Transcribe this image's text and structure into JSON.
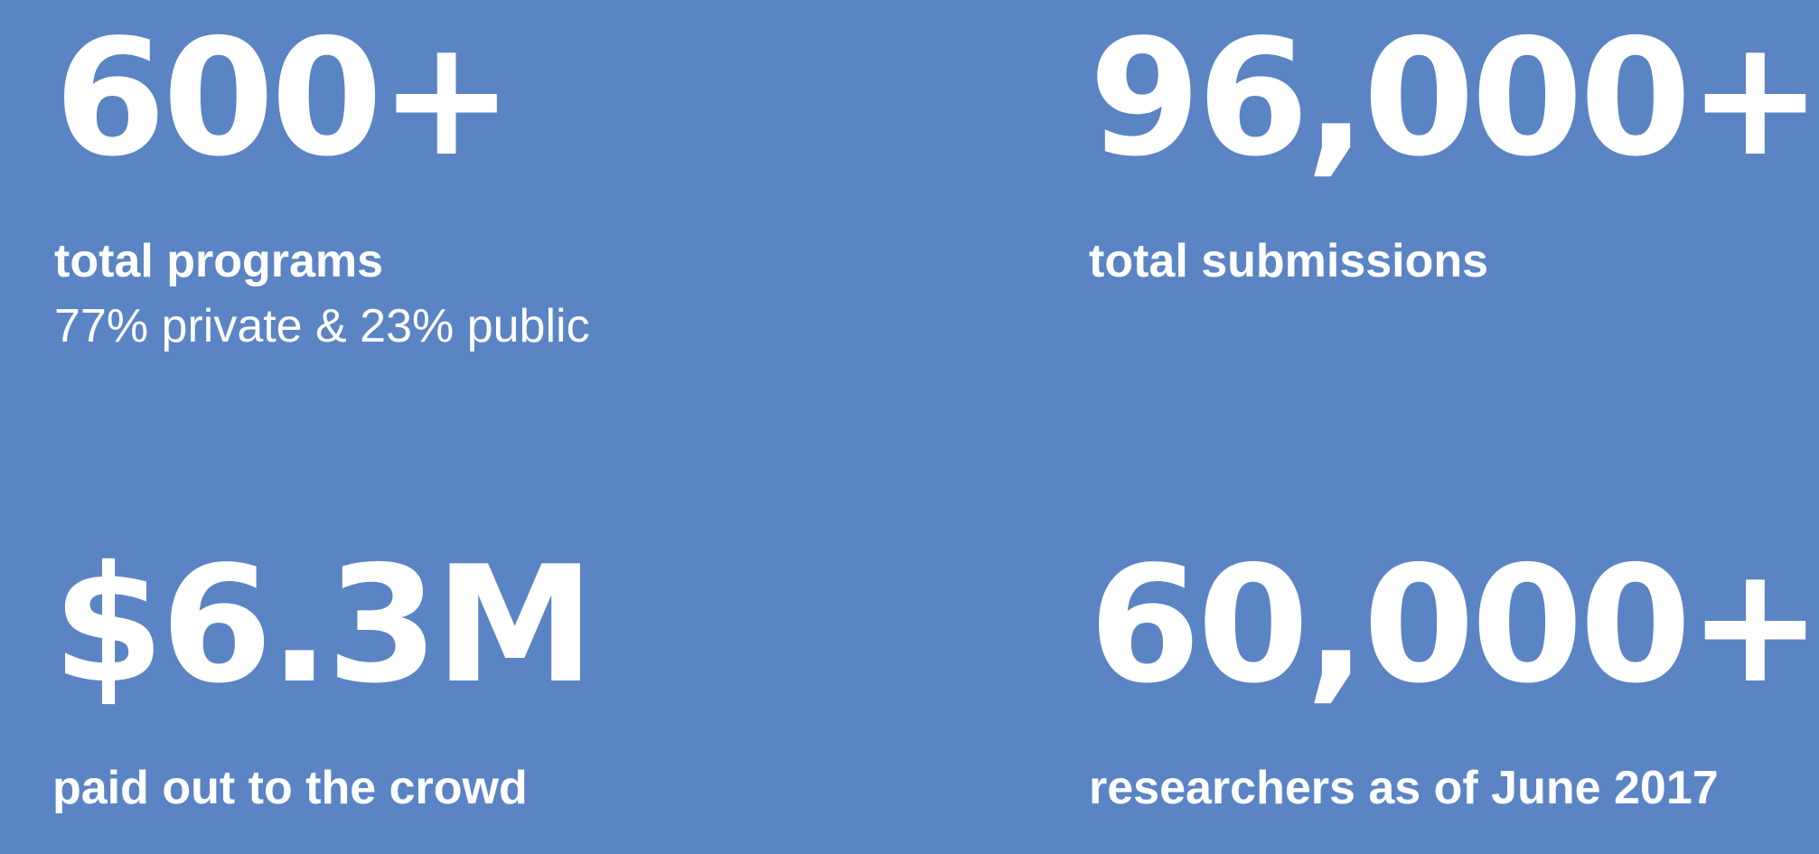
{
  "stats": [
    {
      "value": "600+",
      "label": "total programs",
      "sublabel": "77% private & 23% public"
    },
    {
      "value": "96,000+",
      "label": "total submissions",
      "sublabel": ""
    },
    {
      "value": "$6.3M",
      "label": "paid out to the crowd",
      "sublabel": ""
    },
    {
      "value": "60,000+",
      "label": "researchers as of June 2017",
      "sublabel": ""
    }
  ],
  "colors": {
    "background": "#5b84c4",
    "text": "#ffffff"
  }
}
